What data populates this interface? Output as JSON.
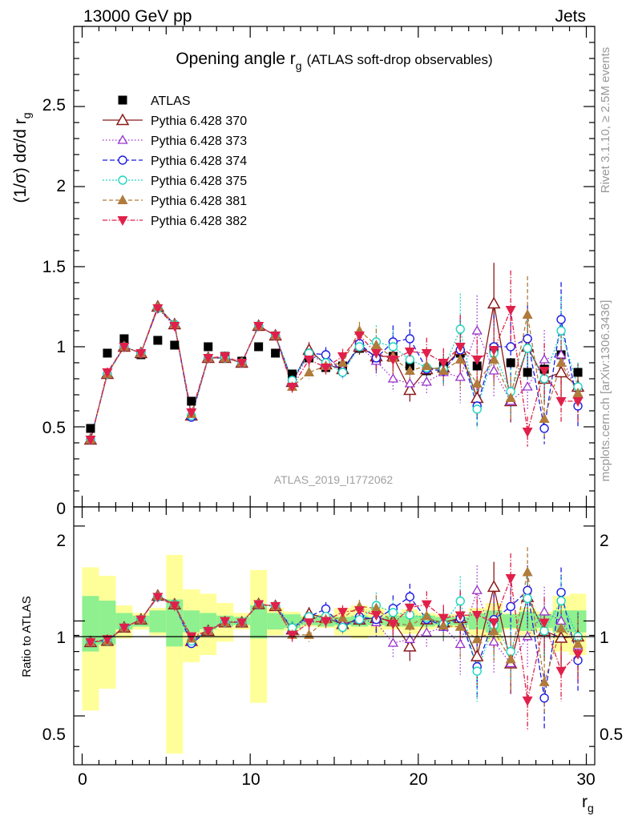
{
  "header": {
    "left": "13000 GeV pp",
    "right": "Jets"
  },
  "plot_title_main": "Opening angle r",
  "plot_title_sub": "g",
  "plot_title_paren": "(ATLAS soft-drop observables)",
  "ylabel_main": "(1/σ) dσ/d r",
  "ylabel_sub": "g",
  "ratio_ylabel": "Ratio to ATLAS",
  "xlabel_main": "r",
  "xlabel_sub": "g",
  "watermark": "ATLAS_2019_I1772062",
  "side_text_top": "Rivet 3.1.10, ≥ 2.5M events",
  "side_text_bottom": "mcplots.cern.ch [arXiv:1306.3436]",
  "main_yticks": [
    "0",
    "0.5",
    "1",
    "1.5",
    "2",
    "2.5"
  ],
  "ratio_yticks": [
    "0.5",
    "1",
    "2"
  ],
  "xticks": [
    "0",
    "10",
    "20",
    "30"
  ],
  "colors": {
    "data": "#000000",
    "p370": "#8b1a1a",
    "p373": "#9932cc",
    "p374": "#1c1ce6",
    "p375": "#20d5c0",
    "p381": "#b07b3b",
    "p382": "#e0204a",
    "band_inner": "#8ef08e",
    "band_outer": "#ffff99"
  },
  "chart_data": {
    "type": "scatter",
    "x": [
      0.5,
      1.5,
      2.5,
      3.5,
      4.5,
      5.5,
      6.5,
      7.5,
      8.5,
      9.5,
      10.5,
      11.5,
      12.5,
      13.5,
      14.5,
      15.5,
      16.5,
      17.5,
      18.5,
      19.5,
      20.5,
      21.5,
      22.5,
      23.5,
      24.5,
      25.5,
      26.5,
      27.5,
      28.5,
      29.5
    ],
    "xlim": [
      -0.5,
      30.5
    ],
    "main_ylim": [
      0,
      3.0
    ],
    "ratio_ylim": [
      0.35,
      2.3
    ],
    "series": [
      {
        "name": "ATLAS",
        "marker": "square",
        "values": [
          0.49,
          0.96,
          1.05,
          0.95,
          1.04,
          1.01,
          0.66,
          1.0,
          0.94,
          0.91,
          1.0,
          0.96,
          0.83,
          0.93,
          0.87,
          0.88,
          0.99,
          0.92,
          0.94,
          0.88,
          0.85,
          0.88,
          0.96,
          0.88,
          0.99,
          0.9,
          0.84,
          0.86,
          0.95,
          0.84
        ]
      },
      {
        "name": "Pythia 6.428 370",
        "marker": "triangle-open",
        "values": [
          0.42,
          0.83,
          1.0,
          0.96,
          1.25,
          1.14,
          0.57,
          0.93,
          0.93,
          0.9,
          1.13,
          1.07,
          0.78,
          0.98,
          0.89,
          0.86,
          1.0,
          0.94,
          0.94,
          0.73,
          0.86,
          0.87,
          0.98,
          0.68,
          1.27,
          0.66,
          1.0,
          0.8,
          0.84,
          0.75
        ]
      },
      {
        "name": "Pythia 6.428 373",
        "marker": "triangle-open-small",
        "values": [
          0.42,
          0.83,
          1.0,
          0.96,
          1.25,
          1.14,
          0.57,
          0.93,
          0.93,
          0.9,
          1.13,
          1.07,
          0.78,
          0.95,
          0.9,
          0.86,
          1.0,
          0.91,
          0.8,
          0.77,
          0.78,
          0.84,
          0.81,
          1.1,
          0.85,
          0.66,
          0.75,
          0.92,
          0.95,
          0.7
        ]
      },
      {
        "name": "Pythia 6.428 374",
        "marker": "circle-open",
        "values": [
          0.42,
          0.83,
          1.0,
          0.96,
          1.24,
          1.14,
          0.56,
          0.93,
          0.93,
          0.9,
          1.13,
          1.07,
          0.79,
          0.96,
          0.95,
          0.84,
          1.02,
          0.93,
          1.03,
          1.05,
          0.86,
          0.85,
          0.98,
          0.63,
          1.0,
          1.0,
          1.05,
          0.49,
          1.17,
          0.63
        ]
      },
      {
        "name": "Pythia 6.428 375",
        "marker": "circle-open",
        "values": [
          0.42,
          0.83,
          1.0,
          0.96,
          1.24,
          1.14,
          0.57,
          0.93,
          0.93,
          0.9,
          1.13,
          1.07,
          0.79,
          0.96,
          0.9,
          0.84,
          1.0,
          1.03,
          1.0,
          0.92,
          0.87,
          0.86,
          1.11,
          0.61,
          0.96,
          0.72,
          0.99,
          0.8,
          1.1,
          0.75
        ]
      },
      {
        "name": "Pythia 6.428 381",
        "marker": "triangle-filled",
        "values": [
          0.42,
          0.83,
          1.0,
          0.96,
          1.25,
          1.14,
          0.58,
          0.93,
          0.93,
          0.9,
          1.13,
          1.07,
          0.75,
          0.84,
          0.88,
          0.9,
          1.1,
          1.01,
          0.93,
          0.85,
          0.88,
          0.85,
          0.92,
          0.77,
          0.92,
          0.68,
          1.2,
          0.55,
          0.9,
          0.71
        ]
      },
      {
        "name": "Pythia 6.428 382",
        "marker": "triangle-down-filled",
        "values": [
          0.42,
          0.84,
          1.0,
          0.96,
          1.24,
          1.13,
          0.59,
          0.93,
          0.94,
          0.9,
          1.13,
          1.07,
          0.75,
          0.92,
          0.87,
          0.94,
          1.07,
          0.96,
          0.92,
          0.97,
          0.96,
          0.9,
          1.0,
          0.92,
          0.98,
          1.23,
          0.47,
          0.85,
          0.66,
          0.66
        ]
      }
    ]
  }
}
